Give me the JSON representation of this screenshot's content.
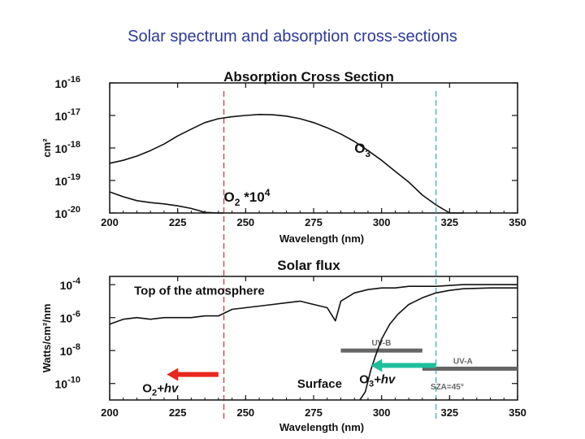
{
  "slide_title": "Solar spectrum and absorption cross-sections",
  "chart_data": [
    {
      "type": "line",
      "title": "Absorption Cross Section",
      "xlabel": "Wavelength (nm)",
      "ylabel": "cm²",
      "xlim": [
        200,
        350
      ],
      "ylim_log10": [
        -20,
        -16
      ],
      "y_scale": "log",
      "xticks": [
        "200",
        "225",
        "250",
        "275",
        "300",
        "325",
        "350"
      ],
      "yticks": [
        {
          "base": "10",
          "exp": "-16"
        },
        {
          "base": "10",
          "exp": "-17"
        },
        {
          "base": "10",
          "exp": "-18"
        },
        {
          "base": "10",
          "exp": "-19"
        },
        {
          "base": "10",
          "exp": "-20"
        }
      ],
      "series": [
        {
          "name": "O3",
          "x": [
            200,
            205,
            210,
            215,
            220,
            225,
            230,
            235,
            240,
            245,
            250,
            255,
            260,
            265,
            270,
            275,
            280,
            285,
            290,
            295,
            300,
            305,
            310,
            315,
            320,
            325,
            330
          ],
          "log10_y": [
            -18.47,
            -18.38,
            -18.25,
            -18.08,
            -17.88,
            -17.63,
            -17.42,
            -17.22,
            -17.1,
            -17.04,
            -17.0,
            -16.97,
            -16.98,
            -17.02,
            -17.1,
            -17.22,
            -17.38,
            -17.57,
            -17.8,
            -18.08,
            -18.38,
            -18.72,
            -19.05,
            -19.45,
            -19.75,
            -20.05,
            -20.3
          ]
        },
        {
          "name": "O2 *10^4",
          "x": [
            200,
            205,
            210,
            215,
            220,
            225,
            230,
            235,
            240,
            242
          ],
          "log10_y": [
            -19.35,
            -19.5,
            -19.62,
            -19.68,
            -19.72,
            -19.78,
            -19.86,
            -19.98,
            -20.15,
            -20.3
          ]
        }
      ],
      "annotations": [
        {
          "label_base": "O",
          "label_sub": "3",
          "label_tail": "",
          "x": 290,
          "log10_y": -18.15
        },
        {
          "label_base": "O",
          "label_sub": "2",
          "label_tail": " *10",
          "label_sup": "4",
          "x": 242,
          "log10_y": -19.65
        }
      ],
      "reference_lines": [
        {
          "x": 242,
          "color": "#cc3333"
        },
        {
          "x": 320,
          "color": "#33aabb"
        }
      ]
    },
    {
      "type": "line",
      "title": "Solar flux",
      "xlabel": "Wavelength (nm)",
      "ylabel": "Watts/cm²/nm",
      "xlim": [
        200,
        350
      ],
      "ylim_log10": [
        -11,
        -3.5
      ],
      "y_scale": "log",
      "xticks": [
        "200",
        "225",
        "250",
        "275",
        "300",
        "325",
        "350"
      ],
      "yticks": [
        {
          "base": "10",
          "exp": "-4",
          "log10": -4
        },
        {
          "base": "10",
          "exp": "-6",
          "log10": -6
        },
        {
          "base": "10",
          "exp": "-8",
          "log10": -8
        },
        {
          "base": "10",
          "exp": "-10",
          "log10": -10
        }
      ],
      "series": [
        {
          "name": "Top of the atmosphere",
          "x": [
            200,
            205,
            210,
            215,
            220,
            225,
            230,
            235,
            240,
            245,
            250,
            255,
            260,
            265,
            270,
            275,
            280,
            283,
            285,
            290,
            295,
            300,
            305,
            310,
            320,
            330,
            340,
            350
          ],
          "log10_y": [
            -6.4,
            -6.1,
            -6.0,
            -6.1,
            -6.0,
            -6.0,
            -6.0,
            -5.9,
            -5.9,
            -5.5,
            -5.4,
            -5.3,
            -5.2,
            -5.1,
            -5.0,
            -5.2,
            -5.4,
            -6.2,
            -5.0,
            -4.5,
            -4.3,
            -4.2,
            -4.2,
            -4.1,
            -4.1,
            -4.0,
            -4.0,
            -4.0
          ]
        },
        {
          "name": "Surface",
          "x": [
            292,
            294,
            296,
            298,
            300,
            303,
            306,
            310,
            315,
            320,
            325,
            330,
            340,
            350
          ],
          "log10_y": [
            -11.5,
            -10.5,
            -9.2,
            -8.2,
            -7.3,
            -6.4,
            -5.8,
            -5.2,
            -4.8,
            -4.5,
            -4.35,
            -4.25,
            -4.2,
            -4.2
          ]
        }
      ],
      "annotations": [
        {
          "text": "Top of the atmosphere",
          "x": 209,
          "log10_y": -4.6
        },
        {
          "text": "Surface",
          "x": 269,
          "log10_y": -10.25
        }
      ],
      "bands": [
        {
          "label": "UV-B",
          "x_start": 285,
          "x_end": 315,
          "log10_y": -8.0
        },
        {
          "label": "UV-A",
          "x_start": 315,
          "x_end": 400,
          "log10_y": -9.1
        }
      ],
      "small_label": "SZA=45°",
      "arrows": [
        {
          "base": "O",
          "sub": "2",
          "tail": "+hv",
          "x_from": 240,
          "x_to": 221,
          "color": "#e8281e"
        },
        {
          "base": "O",
          "sub": "3",
          "tail": "+hv",
          "x_from": 320,
          "x_to": 296,
          "color": "#1fbf9a"
        }
      ]
    }
  ]
}
